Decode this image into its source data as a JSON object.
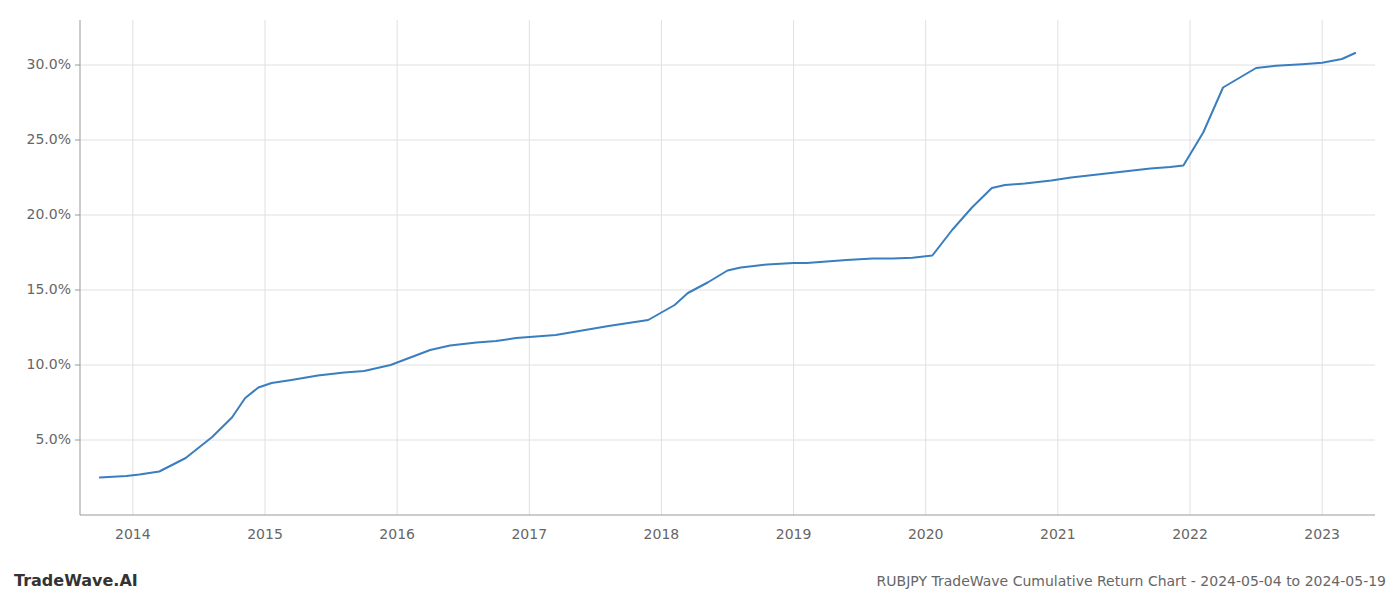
{
  "chart_data": {
    "type": "line",
    "title": "RUBJPY TradeWave Cumulative Return Chart - 2024-05-04 to 2024-05-19",
    "annotations": [
      "TradeWave.AI"
    ],
    "color": "#3a7ebf",
    "x": [
      2013.75,
      2013.85,
      2013.95,
      2014.05,
      2014.2,
      2014.4,
      2014.6,
      2014.75,
      2014.85,
      2014.95,
      2015.05,
      2015.2,
      2015.4,
      2015.6,
      2015.75,
      2015.85,
      2015.95,
      2016.1,
      2016.25,
      2016.4,
      2016.6,
      2016.75,
      2016.9,
      2017.05,
      2017.2,
      2017.4,
      2017.6,
      2017.75,
      2017.9,
      2018.0,
      2018.1,
      2018.2,
      2018.35,
      2018.5,
      2018.6,
      2018.7,
      2018.8,
      2018.9,
      2019.0,
      2019.1,
      2019.25,
      2019.4,
      2019.6,
      2019.75,
      2019.9,
      2020.05,
      2020.2,
      2020.35,
      2020.5,
      2020.6,
      2020.75,
      2020.85,
      2020.95,
      2021.1,
      2021.3,
      2021.5,
      2021.7,
      2021.85,
      2021.95,
      2022.1,
      2022.25,
      2022.5,
      2022.65,
      2022.75,
      2022.85,
      2023.0,
      2023.15,
      2023.25
    ],
    "values": [
      2.5,
      2.55,
      2.6,
      2.7,
      2.9,
      3.8,
      5.2,
      6.5,
      7.8,
      8.5,
      8.8,
      9.0,
      9.3,
      9.5,
      9.6,
      9.8,
      10.0,
      10.5,
      11.0,
      11.3,
      11.5,
      11.6,
      11.8,
      11.9,
      12.0,
      12.3,
      12.6,
      12.8,
      13.0,
      13.5,
      14.0,
      14.8,
      15.5,
      16.3,
      16.5,
      16.6,
      16.7,
      16.75,
      16.8,
      16.8,
      16.9,
      17.0,
      17.1,
      17.1,
      17.15,
      17.3,
      19.0,
      20.5,
      21.8,
      22.0,
      22.1,
      22.2,
      22.3,
      22.5,
      22.7,
      22.9,
      23.1,
      23.2,
      23.3,
      25.5,
      28.5,
      29.8,
      29.95,
      30.0,
      30.05,
      30.15,
      30.4,
      30.8
    ],
    "xlim": [
      2013.6,
      2023.4
    ],
    "ylim": [
      0,
      33
    ],
    "xticks": [
      2014,
      2015,
      2016,
      2017,
      2018,
      2019,
      2020,
      2021,
      2022,
      2023
    ],
    "yticks": [
      {
        "value": 5.0,
        "label": "5.0%"
      },
      {
        "value": 10.0,
        "label": "10.0%"
      },
      {
        "value": 15.0,
        "label": "15.0%"
      },
      {
        "value": 20.0,
        "label": "20.0%"
      },
      {
        "value": 25.0,
        "label": "25.0%"
      },
      {
        "value": 30.0,
        "label": "30.0%"
      }
    ],
    "grid": true
  }
}
